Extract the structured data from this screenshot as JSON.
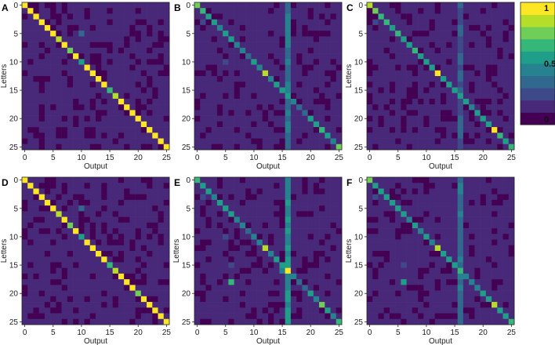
{
  "chart_data": {
    "type": "heatmap",
    "grid_size": 26,
    "colormap": [
      "#440154",
      "#482878",
      "#3e4989",
      "#31688e",
      "#26828e",
      "#1f9e89",
      "#35b779",
      "#6ece58",
      "#b5de2b",
      "#fde725"
    ],
    "colorbar": {
      "ticks": [
        {
          "value": 0,
          "label": "0"
        },
        {
          "value": 0.5,
          "label": "0.5"
        },
        {
          "value": 1,
          "label": "1"
        }
      ],
      "range": [
        0,
        1
      ]
    },
    "x_ticks": [
      "0",
      "5",
      "10",
      "15",
      "20",
      "25"
    ],
    "y_ticks": [
      "0",
      "5",
      "10",
      "15",
      "20",
      "25"
    ],
    "panels": [
      {
        "label": "A",
        "xlabel": "Output",
        "ylabel": "Letters",
        "diag": [
          1,
          1,
          1,
          1,
          1,
          1,
          0.85,
          1,
          0.75,
          1,
          0.6,
          1,
          1,
          1,
          1,
          0.65,
          0.9,
          1,
          1,
          1,
          1,
          1,
          1,
          1,
          1,
          1
        ],
        "off": [
          [
            5,
            10,
            0.3
          ],
          [
            2,
            12,
            0.12
          ],
          [
            8,
            19,
            0.12
          ],
          [
            16,
            9,
            0.12
          ],
          [
            21,
            3,
            0.12
          ],
          [
            23,
            24,
            0.12
          ]
        ],
        "col": -1,
        "col_strength": 0
      },
      {
        "label": "B",
        "xlabel": "Output",
        "ylabel": "",
        "diag": [
          0.8,
          0.7,
          0.55,
          0.5,
          0.45,
          0.6,
          0.5,
          0.4,
          0.45,
          0.35,
          0.5,
          0.4,
          0.85,
          0.45,
          0.5,
          0.55,
          0.6,
          0.4,
          0.35,
          0.3,
          0.55,
          0.5,
          0.7,
          0.6,
          0.45,
          0.75
        ],
        "off": [
          [
            3,
            1,
            0.2
          ],
          [
            8,
            0,
            0.15
          ],
          [
            10,
            5,
            0.18
          ],
          [
            15,
            6,
            0.15
          ],
          [
            18,
            9,
            0.12
          ],
          [
            6,
            13,
            0.12
          ]
        ],
        "col": 16,
        "col_strength": 0.3
      },
      {
        "label": "C",
        "xlabel": "Output",
        "ylabel": "Letters",
        "diag": [
          0.85,
          0.75,
          0.7,
          0.65,
          0.6,
          0.7,
          0.6,
          0.55,
          0.65,
          0.5,
          0.55,
          0.5,
          0.95,
          0.55,
          0.6,
          0.5,
          0.55,
          0.5,
          0.45,
          0.5,
          0.6,
          0.55,
          0.95,
          0.65,
          0.55,
          0.7
        ],
        "off": [
          [
            3,
            1,
            0.2
          ],
          [
            15,
            6,
            0.15
          ],
          [
            10,
            5,
            0.15
          ],
          [
            18,
            22,
            0.12
          ]
        ],
        "col": 16,
        "col_strength": 0.22
      },
      {
        "label": "D",
        "xlabel": "Output",
        "ylabel": "Letters",
        "diag": [
          1,
          1,
          1,
          1,
          1,
          1,
          0.85,
          1,
          0.75,
          1,
          0.6,
          1,
          1,
          1,
          1,
          0.65,
          0.9,
          1,
          1,
          1,
          0.75,
          1,
          1,
          1,
          1,
          1
        ],
        "off": [
          [
            5,
            10,
            0.3
          ],
          [
            2,
            12,
            0.12
          ],
          [
            8,
            19,
            0.12
          ],
          [
            16,
            9,
            0.12
          ],
          [
            21,
            3,
            0.12
          ],
          [
            23,
            24,
            0.12
          ]
        ],
        "col": -1,
        "col_strength": 0
      },
      {
        "label": "E",
        "xlabel": "Output",
        "ylabel": "Letters",
        "diag": [
          0.7,
          0.55,
          0.5,
          0.45,
          0.5,
          0.55,
          0.5,
          0.4,
          0.45,
          0.35,
          0.45,
          0.4,
          0.85,
          0.45,
          0.5,
          0.55,
          0.95,
          0.4,
          0.35,
          0.3,
          0.55,
          0.45,
          0.8,
          0.6,
          0.45,
          0.7
        ],
        "off": [
          [
            3,
            1,
            0.2
          ],
          [
            8,
            0,
            0.15
          ],
          [
            18,
            6,
            0.65
          ],
          [
            15,
            6,
            0.25
          ],
          [
            10,
            5,
            0.18
          ],
          [
            14,
            16,
            0.6
          ],
          [
            16,
            15,
            0.4
          ]
        ],
        "col": 16,
        "col_strength": 0.45
      },
      {
        "label": "F",
        "xlabel": "Output",
        "ylabel": "Letters",
        "diag": [
          0.75,
          0.6,
          0.55,
          0.5,
          0.5,
          0.6,
          0.55,
          0.45,
          0.5,
          0.4,
          0.5,
          0.45,
          0.85,
          0.5,
          0.55,
          0.6,
          0.7,
          0.45,
          0.4,
          0.4,
          0.55,
          0.5,
          0.9,
          0.6,
          0.5,
          0.7
        ],
        "off": [
          [
            18,
            6,
            0.5
          ],
          [
            3,
            1,
            0.18
          ],
          [
            15,
            6,
            0.2
          ],
          [
            14,
            16,
            0.45
          ]
        ],
        "col": 16,
        "col_strength": 0.3
      }
    ]
  }
}
